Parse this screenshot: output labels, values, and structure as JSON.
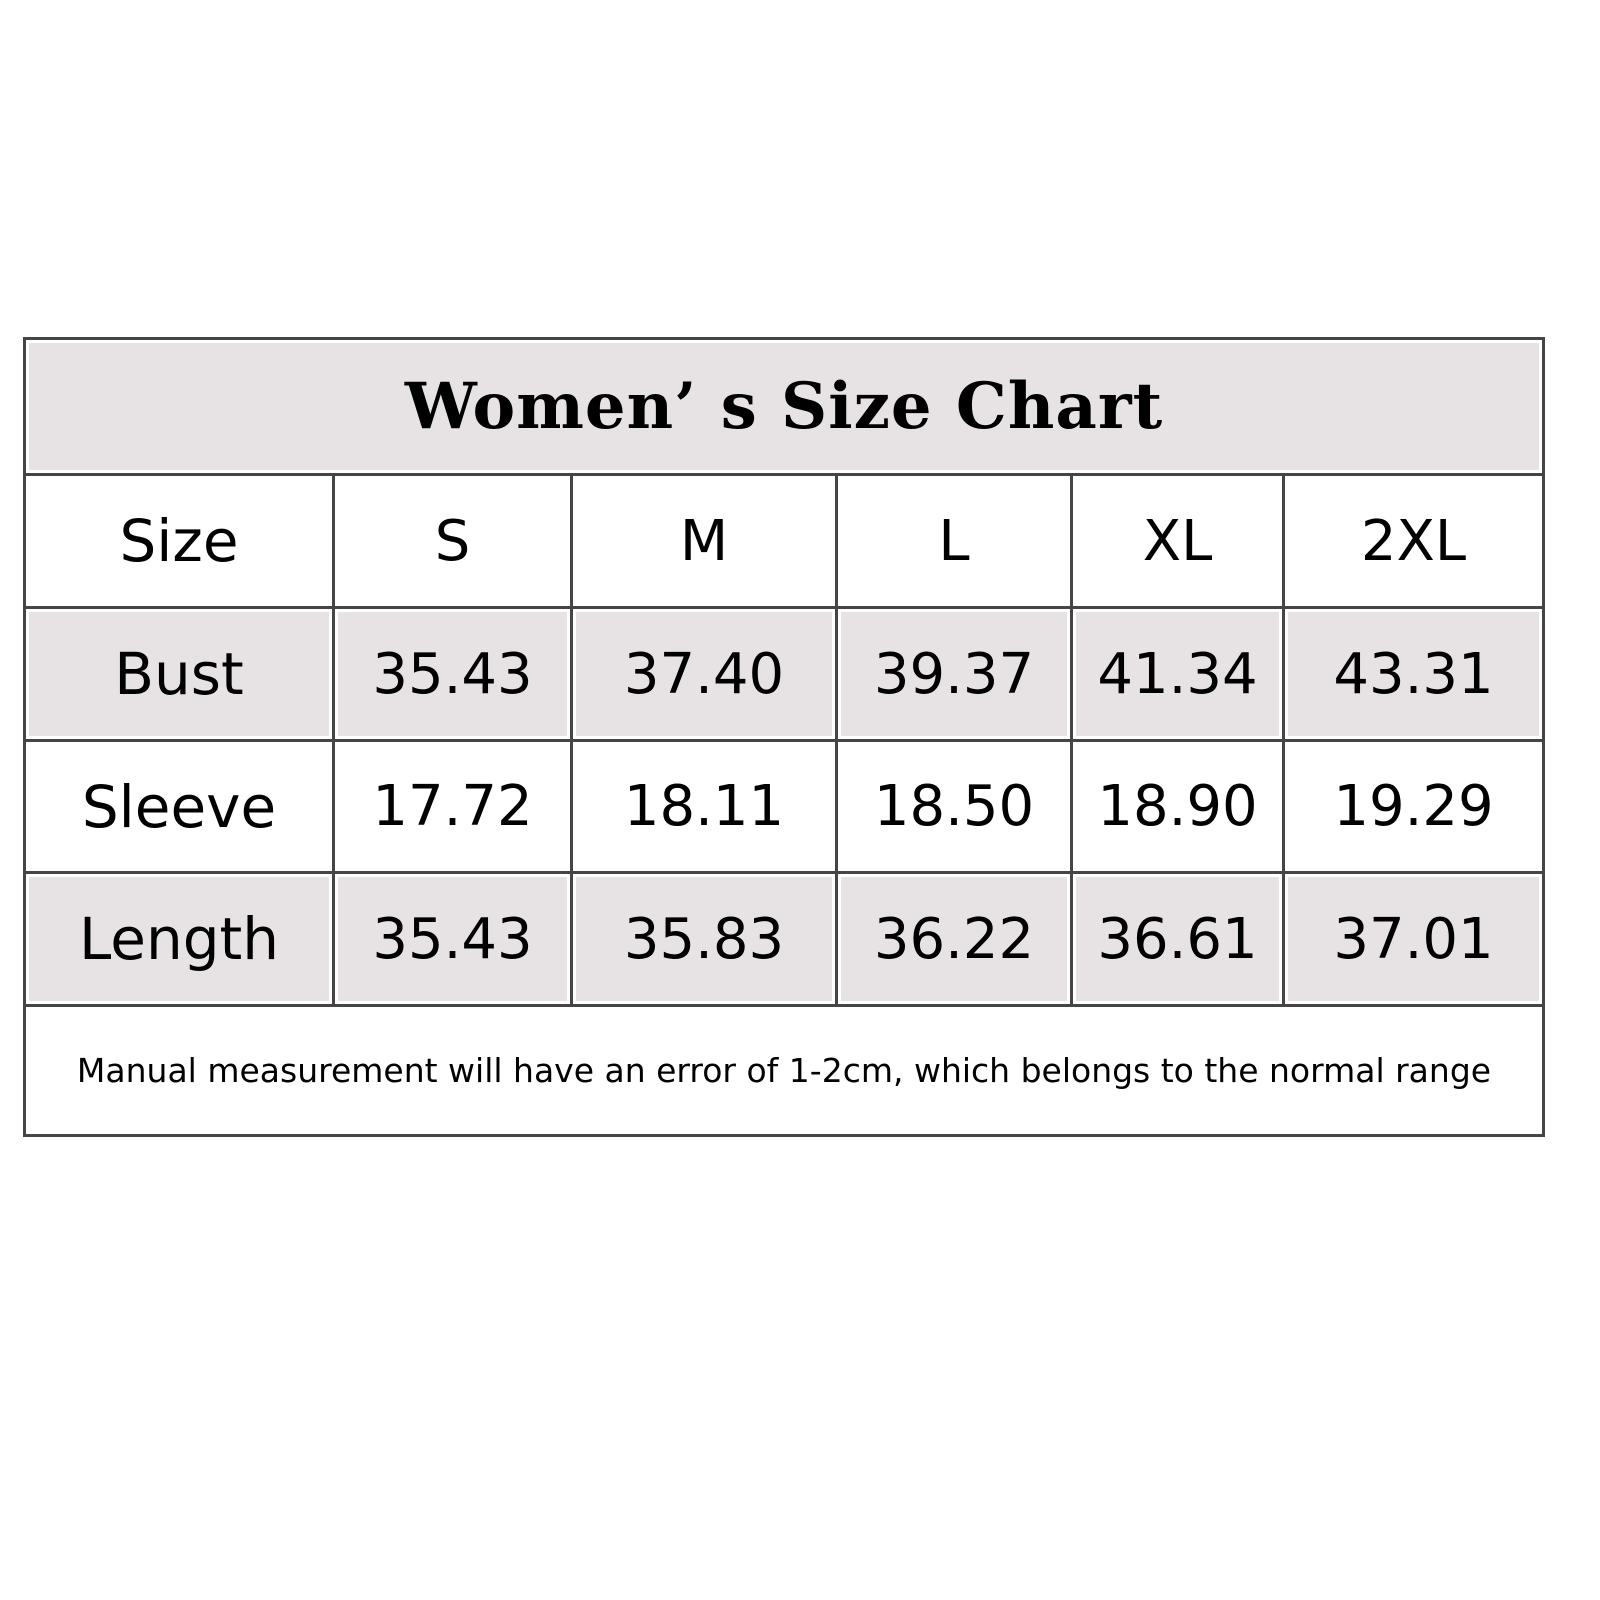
{
  "title": "Women’ s Size Chart",
  "header": {
    "label": "Size",
    "sizes": [
      "S",
      "M",
      "L",
      "XL",
      "2XL"
    ]
  },
  "rows": [
    {
      "label": "Bust",
      "values": [
        "35.43",
        "37.40",
        "39.37",
        "41.34",
        "43.31"
      ]
    },
    {
      "label": "Sleeve",
      "values": [
        "17.72",
        "18.11",
        "18.50",
        "18.90",
        "19.29"
      ]
    },
    {
      "label": "Length",
      "values": [
        "35.43",
        "35.83",
        "36.22",
        "36.61",
        "37.01"
      ]
    }
  ],
  "note": "Manual measurement will have an error of 1-2cm, which belongs to the normal range",
  "colors": {
    "row_shade": "#e7e3e4",
    "border": "#454545"
  }
}
